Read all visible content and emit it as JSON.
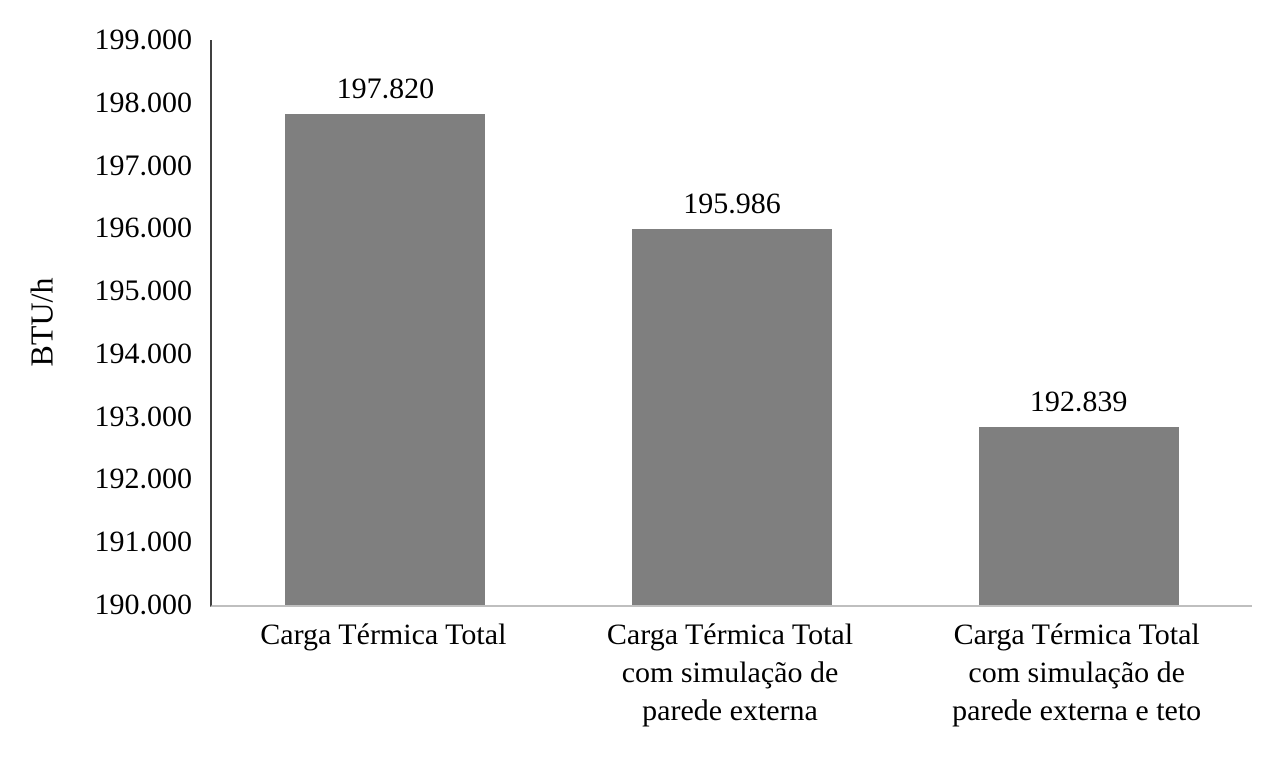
{
  "chart_data": {
    "type": "bar",
    "title": "",
    "xlabel": "",
    "ylabel": "BTU/h",
    "ylim": [
      190000,
      199000
    ],
    "ytick_step": 1000,
    "grid": false,
    "legend": null,
    "bar_color": "#7f7f7f",
    "yticks": [
      "199.000",
      "198.000",
      "197.000",
      "196.000",
      "195.000",
      "194.000",
      "193.000",
      "192.000",
      "191.000",
      "190.000"
    ],
    "categories": [
      "Carga Térmica Total",
      "Carga Térmica Total com simulação de parede externa",
      "Carga Térmica Total com simulação de parede externa e teto"
    ],
    "category_lines": [
      [
        "Carga Térmica Total"
      ],
      [
        "Carga Térmica Total",
        "com simulação de",
        "parede externa"
      ],
      [
        "Carga Térmica Total",
        "com simulação de",
        "parede externa e teto"
      ]
    ],
    "values": [
      197820,
      195986,
      192839
    ],
    "value_labels": [
      "197.820",
      "195.986",
      "192.839"
    ]
  }
}
